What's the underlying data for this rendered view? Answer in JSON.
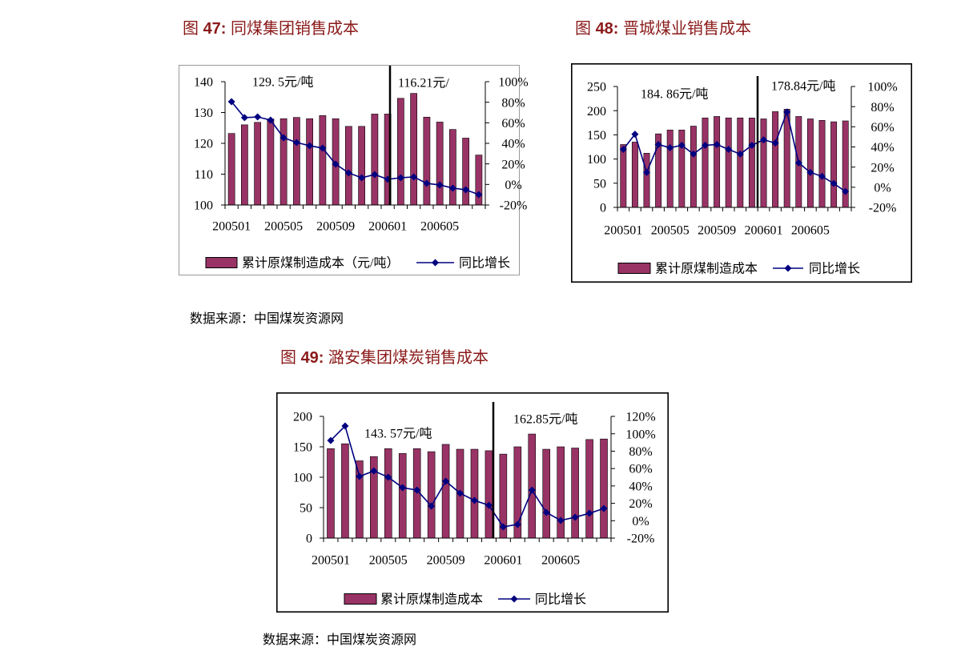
{
  "colors": {
    "title": "#8B1A1A",
    "bar": "#993366",
    "bar_outline": "#000000",
    "line": "#000080",
    "divider": "#000000"
  },
  "sources": [
    "数据来源：中国煤炭资源网",
    "数据来源：中国煤炭资源网"
  ],
  "chart_data": [
    {
      "type": "bar",
      "figure_prefix": "图",
      "figure_no": "47:",
      "title": "同煤集团销售成本",
      "categories": [
        "200501",
        "",
        "",
        "",
        "200505",
        "",
        "",
        "",
        "200509",
        "",
        "",
        "",
        "200601",
        "",
        "",
        "",
        "200605",
        "",
        "",
        ""
      ],
      "series": [
        {
          "name": "累计原煤制造成本（元/吨）",
          "type": "bar",
          "axis": "left",
          "values": [
            123.2,
            126.0,
            126.8,
            127.9,
            128.0,
            128.4,
            128.0,
            129.0,
            128.0,
            125.5,
            125.5,
            129.5,
            129.5,
            134.6,
            136.2,
            128.5,
            126.9,
            124.5,
            121.7,
            116.2
          ]
        },
        {
          "name": "同比增长",
          "type": "line",
          "axis": "right",
          "values": [
            80.5,
            65.0,
            65.7,
            62.6,
            45.5,
            40.8,
            37.7,
            35.3,
            19.7,
            11.2,
            6.5,
            9.6,
            5.0,
            6.5,
            7.3,
            1.0,
            -0.5,
            -3.6,
            -5.2,
            -9.9
          ]
        }
      ],
      "ylim": [
        100,
        140
      ],
      "y_ticks": [
        "100",
        "110",
        "120",
        "130",
        "140"
      ],
      "y2lim": [
        -20,
        100
      ],
      "y2_ticks": [
        "-20%",
        "0%",
        "20%",
        "40%",
        "60%",
        "80%",
        "100%"
      ],
      "annotations": [
        "129. 5元/吨",
        "116.21元/"
      ],
      "legend": "bottom",
      "grid": false
    },
    {
      "type": "bar",
      "figure_prefix": "图",
      "figure_no": "48:",
      "title": "晋城煤业销售成本",
      "categories": [
        "200501",
        "",
        "",
        "",
        "200505",
        "",
        "",
        "",
        "200509",
        "",
        "",
        "",
        "200601",
        "",
        "",
        "",
        "200605",
        "",
        "",
        ""
      ],
      "series": [
        {
          "name": "累计原煤制造成本",
          "type": "bar",
          "axis": "left",
          "values": [
            130,
            135,
            112,
            152,
            160,
            160,
            168,
            185,
            188,
            185,
            185,
            184.86,
            183,
            198,
            203,
            188,
            183,
            180,
            177,
            178.84
          ]
        },
        {
          "name": "同比增长",
          "type": "line",
          "axis": "right",
          "values": [
            37.6,
            52.6,
            14.7,
            42.4,
            39.2,
            41.6,
            32.9,
            41.6,
            42.4,
            37.6,
            32.9,
            41.6,
            47.1,
            43.9,
            74.7,
            24.2,
            14.7,
            10.8,
            3.7,
            -4.2
          ]
        }
      ],
      "ylim": [
        0,
        250
      ],
      "y_ticks": [
        "0",
        "50",
        "100",
        "150",
        "200",
        "250"
      ],
      "y2lim": [
        -20,
        100
      ],
      "y2_ticks": [
        "-20%",
        "0%",
        "20%",
        "40%",
        "60%",
        "80%",
        "100%"
      ],
      "annotations": [
        "184. 86元/吨",
        "178.84元/吨"
      ],
      "legend": "bottom",
      "grid": false
    },
    {
      "type": "bar",
      "figure_prefix": "图",
      "figure_no": "49:",
      "title": "潞安集团煤炭销售成本",
      "categories": [
        "200501",
        "",
        "",
        "",
        "200505",
        "",
        "",
        "",
        "200509",
        "",
        "",
        "",
        "200601",
        "",
        "",
        "",
        "200605",
        "",
        "",
        ""
      ],
      "series": [
        {
          "name": "累计原煤制造成本",
          "type": "bar",
          "axis": "left",
          "values": [
            147,
            155,
            127,
            134,
            147,
            139,
            147,
            142,
            154,
            146,
            146,
            143.57,
            138,
            150,
            171,
            146,
            150,
            148,
            162,
            162.85
          ]
        },
        {
          "name": "同比增长",
          "type": "line",
          "axis": "right",
          "values": [
            92.3,
            108.9,
            50.9,
            57.3,
            50.0,
            38.0,
            35.2,
            16.8,
            45.4,
            31.6,
            23.3,
            17.8,
            -7.1,
            -4.3,
            35.2,
            9.5,
            0.3,
            4.0,
            8.5,
            14.1
          ]
        }
      ],
      "ylim": [
        0,
        200
      ],
      "y_ticks": [
        "0",
        "50",
        "100",
        "150",
        "200"
      ],
      "y2lim": [
        -20,
        120
      ],
      "y2_ticks": [
        "-20%",
        "0%",
        "20%",
        "40%",
        "60%",
        "80%",
        "100%",
        "120%"
      ],
      "annotations": [
        "143. 57元/吨",
        "162.85元/吨"
      ],
      "legend": "bottom",
      "grid": false
    }
  ]
}
